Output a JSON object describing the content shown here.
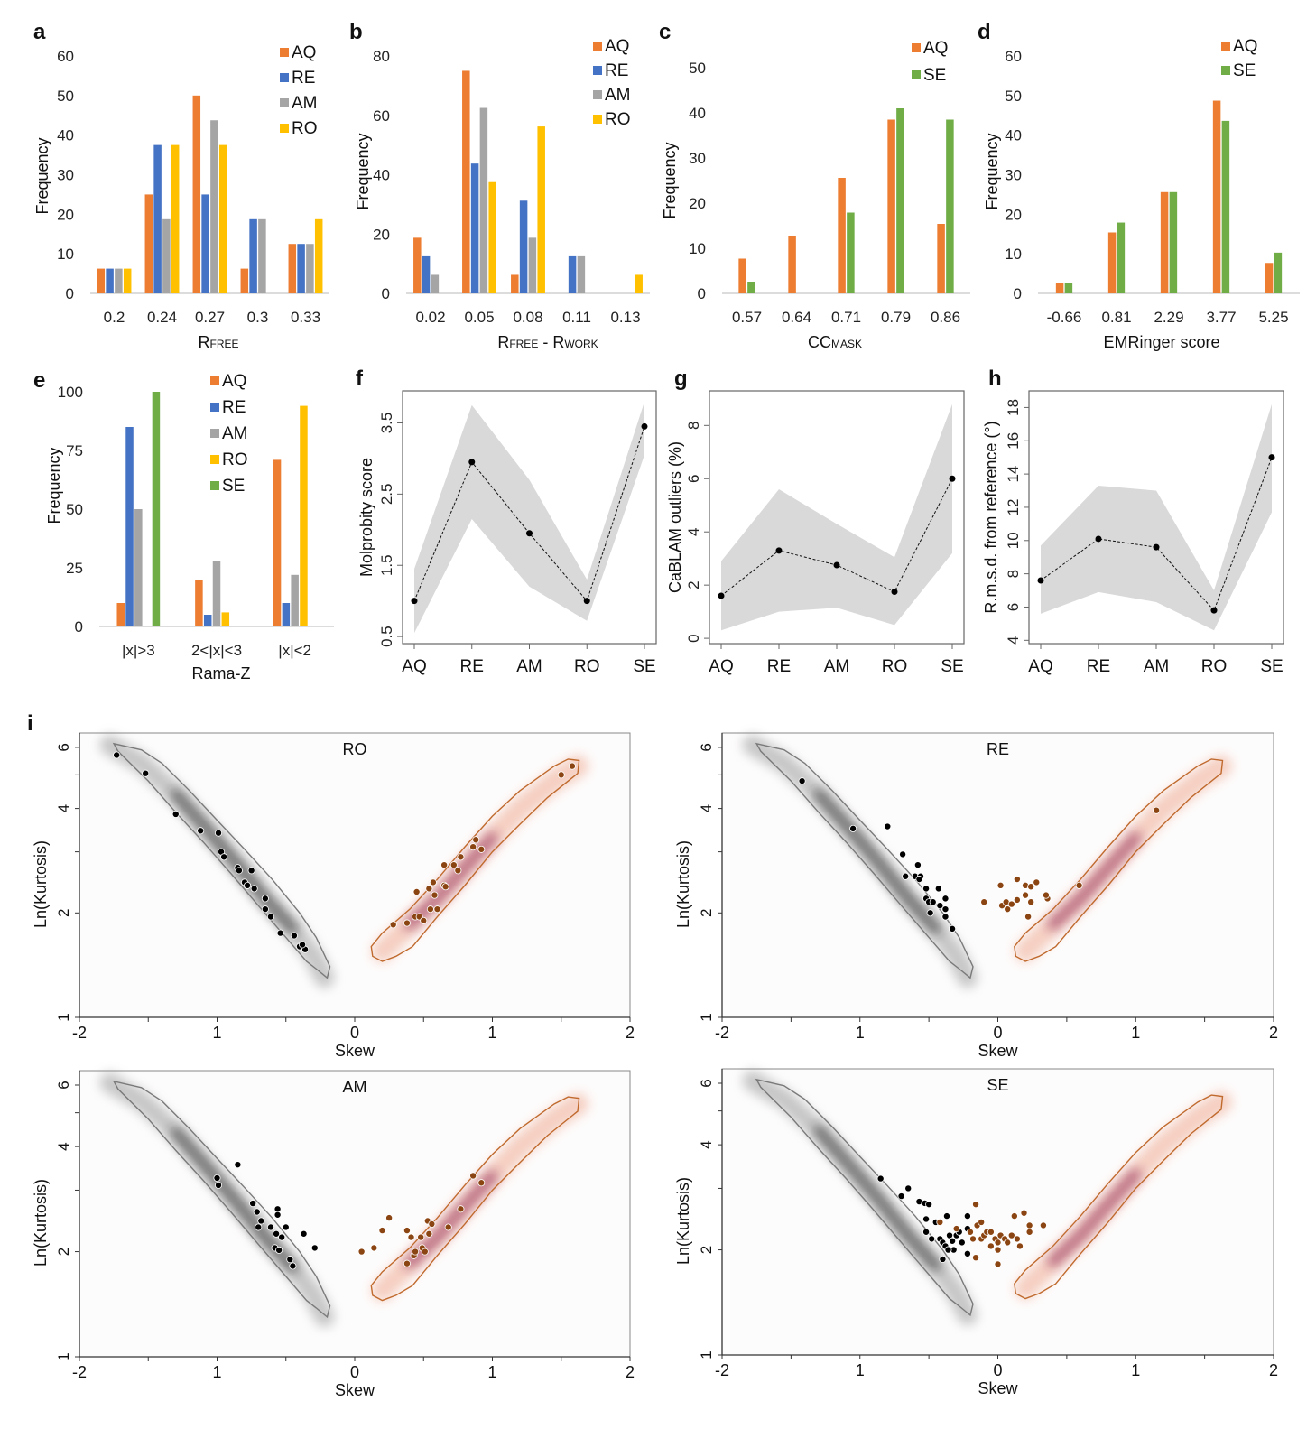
{
  "colors": {
    "AQ": "#ED7D31",
    "RE": "#4472C4",
    "AM": "#A5A5A5",
    "RO": "#FFC000",
    "SE": "#70AD47",
    "band": "#D9D9D9",
    "kde_neg": "#333333",
    "kde_pos": "#8B2252",
    "contour_neg": "#7a7a7a",
    "contour_pos": "#C06A2E",
    "points_pos": "#8B4513"
  },
  "panel_labels": {
    "a": "a",
    "b": "b",
    "c": "c",
    "d": "d",
    "e": "e",
    "f": "f",
    "g": "g",
    "h": "h",
    "i": "i"
  },
  "chart_data": [
    {
      "id": "a",
      "type": "bar",
      "ylabel": "Frequency",
      "xlabel": "R",
      "xlabel_sub": "FREE",
      "xlabel_rest": "",
      "ylim": [
        0,
        60
      ],
      "yticks": [
        0,
        10,
        20,
        30,
        40,
        50,
        60
      ],
      "categories": [
        "0.2",
        "0.24",
        "0.27",
        "0.3",
        "0.33"
      ],
      "legend": "top-right",
      "series": [
        {
          "name": "AQ",
          "values": [
            6.25,
            25,
            50,
            6.25,
            12.5
          ]
        },
        {
          "name": "RE",
          "values": [
            6.25,
            37.5,
            25,
            18.75,
            12.5
          ]
        },
        {
          "name": "AM",
          "values": [
            6.25,
            18.75,
            43.75,
            18.75,
            12.5
          ]
        },
        {
          "name": "RO",
          "values": [
            6.25,
            37.5,
            37.5,
            0,
            18.75
          ]
        }
      ]
    },
    {
      "id": "b",
      "type": "bar",
      "ylabel": "Frequency",
      "xlabel": "R",
      "xlabel_sub": "FREE",
      "xlabel_rest": " - R",
      "xlabel_sub2": "WORK",
      "ylim": [
        0,
        80
      ],
      "yticks": [
        0,
        20,
        40,
        60,
        80
      ],
      "categories": [
        "0.02",
        "0.05",
        "0.08",
        "0.11",
        "0.13"
      ],
      "legend": "top-right",
      "series": [
        {
          "name": "AQ",
          "values": [
            18.75,
            75,
            6.25,
            0,
            0
          ]
        },
        {
          "name": "RE",
          "values": [
            12.5,
            43.75,
            31.25,
            12.5,
            0
          ]
        },
        {
          "name": "AM",
          "values": [
            6.25,
            62.5,
            18.75,
            12.5,
            0
          ]
        },
        {
          "name": "RO",
          "values": [
            0,
            37.5,
            56.25,
            0,
            6.25
          ]
        }
      ]
    },
    {
      "id": "c",
      "type": "bar",
      "ylabel": "Frequency",
      "xlabel": "CC",
      "xlabel_sub": "MASK",
      "xlabel_rest": "",
      "ylim": [
        0,
        50
      ],
      "yticks": [
        0,
        10,
        20,
        30,
        40,
        50
      ],
      "categories": [
        "0.57",
        "0.64",
        "0.71",
        "0.79",
        "0.86"
      ],
      "legend": "top-right",
      "series": [
        {
          "name": "AQ",
          "values": [
            7.7,
            12.8,
            25.6,
            38.5,
            15.4
          ]
        },
        {
          "name": "SE",
          "values": [
            2.6,
            0,
            17.9,
            41.0,
            38.5
          ]
        }
      ]
    },
    {
      "id": "d",
      "type": "bar",
      "ylabel": "Frequency",
      "xlabel": "EMRinger score",
      "xlabel_sub": "",
      "xlabel_rest": "",
      "ylim": [
        0,
        60
      ],
      "yticks": [
        0,
        10,
        20,
        30,
        40,
        50,
        60
      ],
      "categories": [
        "-0.66",
        "0.81",
        "2.29",
        "3.77",
        "5.25"
      ],
      "legend": "top-right",
      "series": [
        {
          "name": "AQ",
          "values": [
            2.6,
            15.4,
            25.6,
            48.7,
            7.7
          ]
        },
        {
          "name": "SE",
          "values": [
            2.6,
            17.9,
            25.6,
            43.6,
            10.3
          ]
        }
      ]
    },
    {
      "id": "e",
      "type": "bar",
      "ylabel": "Frequency",
      "xlabel": "Rama-Z",
      "xlabel_sub": "",
      "xlabel_rest": "",
      "ylim": [
        0,
        100
      ],
      "yticks": [
        0,
        25,
        50,
        75,
        100
      ],
      "categories": [
        "|x|>3",
        "2<|x|<3",
        "|x|<2"
      ],
      "legend": "top-center",
      "series": [
        {
          "name": "AQ",
          "values": [
            10,
            20,
            71
          ]
        },
        {
          "name": "RE",
          "values": [
            85,
            5,
            10
          ]
        },
        {
          "name": "AM",
          "values": [
            50,
            28,
            22
          ]
        },
        {
          "name": "RO",
          "values": [
            0,
            6,
            94
          ]
        },
        {
          "name": "SE",
          "values": [
            100,
            0,
            0
          ]
        }
      ]
    },
    {
      "id": "f",
      "type": "line",
      "ylabel": "Molprobity score",
      "categories": [
        "AQ",
        "RE",
        "AM",
        "RO",
        "SE"
      ],
      "values": [
        1.0,
        2.95,
        1.95,
        1.0,
        3.45
      ],
      "lower": [
        0.55,
        2.15,
        1.2,
        0.72,
        3.05
      ],
      "upper": [
        1.45,
        3.75,
        2.7,
        1.3,
        3.8
      ],
      "ylim": [
        0.4,
        3.95
      ],
      "yticks": [
        "0.5",
        "1.5",
        "2.5",
        "3.5"
      ]
    },
    {
      "id": "g",
      "type": "line",
      "ylabel": "CaBLAM outliers (%)",
      "categories": [
        "AQ",
        "RE",
        "AM",
        "RO",
        "SE"
      ],
      "values": [
        1.6,
        3.3,
        2.75,
        1.75,
        6.0
      ],
      "lower": [
        0.3,
        1.0,
        1.15,
        0.5,
        3.2
      ],
      "upper": [
        2.9,
        5.6,
        4.3,
        3.05,
        8.8
      ],
      "ylim": [
        -0.2,
        9.3
      ],
      "yticks": [
        "0",
        "2",
        "4",
        "6",
        "8"
      ]
    },
    {
      "id": "h",
      "type": "line",
      "ylabel": "R.m.s.d. from reference (°)",
      "categories": [
        "AQ",
        "RE",
        "AM",
        "RO",
        "SE"
      ],
      "values": [
        7.6,
        10.1,
        9.6,
        5.8,
        15.0
      ],
      "lower": [
        5.6,
        6.9,
        6.3,
        4.6,
        11.7
      ],
      "upper": [
        9.7,
        13.3,
        13.0,
        7.0,
        18.2
      ],
      "ylim": [
        3.8,
        19.0
      ],
      "yticks": [
        "4",
        "6",
        "8",
        "10",
        "12",
        "14",
        "16",
        "18"
      ]
    },
    {
      "id": "i-RO",
      "type": "scatter",
      "title": "RO",
      "xlabel": "Skew",
      "ylabel": "Ln(Kurtosis)",
      "xlim": [
        -2,
        2
      ],
      "ylim": [
        1,
        6.6
      ],
      "yscale": "log",
      "xticklabels": [
        "-2",
        "1",
        "0",
        "1",
        "2"
      ],
      "yticks": [
        "1",
        "2",
        "4",
        "6"
      ],
      "neg_points": [
        [
          -1.73,
          5.7
        ],
        [
          -1.52,
          5.05
        ],
        [
          -1.3,
          3.85
        ],
        [
          -1.12,
          3.45
        ],
        [
          -0.99,
          3.4
        ],
        [
          -0.97,
          3.0
        ],
        [
          -0.95,
          2.9
        ],
        [
          -0.85,
          2.7
        ],
        [
          -0.84,
          2.65
        ],
        [
          -0.75,
          2.65
        ],
        [
          -0.8,
          2.45
        ],
        [
          -0.78,
          2.4
        ],
        [
          -0.73,
          2.35
        ],
        [
          -0.65,
          2.2
        ],
        [
          -0.65,
          2.05
        ],
        [
          -0.61,
          1.95
        ],
        [
          -0.54,
          1.75
        ],
        [
          -0.44,
          1.72
        ],
        [
          -0.4,
          1.6
        ],
        [
          -0.36,
          1.57
        ],
        [
          -0.38,
          1.62
        ]
      ],
      "pos_points": [
        [
          0.28,
          1.85
        ],
        [
          0.38,
          1.87
        ],
        [
          0.44,
          1.95
        ],
        [
          0.47,
          1.95
        ],
        [
          0.5,
          1.9
        ],
        [
          0.45,
          2.3
        ],
        [
          0.54,
          2.35
        ],
        [
          0.57,
          2.45
        ],
        [
          0.55,
          2.05
        ],
        [
          0.6,
          2.05
        ],
        [
          0.58,
          2.25
        ],
        [
          0.65,
          2.4
        ],
        [
          0.66,
          2.38
        ],
        [
          0.65,
          2.75
        ],
        [
          0.72,
          2.75
        ],
        [
          0.75,
          2.65
        ],
        [
          0.77,
          2.9
        ],
        [
          0.86,
          3.1
        ],
        [
          0.88,
          3.25
        ],
        [
          0.92,
          3.05
        ],
        [
          1.5,
          5.0
        ],
        [
          1.58,
          5.3
        ]
      ]
    },
    {
      "id": "i-RE",
      "type": "scatter",
      "title": "RE",
      "xlabel": "Skew",
      "ylabel": "Ln(Kurtosis)",
      "xlim": [
        -2,
        2
      ],
      "ylim": [
        1,
        6.6
      ],
      "yscale": "log",
      "xticklabels": [
        "-2",
        "1",
        "0",
        "1",
        "2"
      ],
      "yticks": [
        "1",
        "2",
        "4",
        "6"
      ],
      "neg_points": [
        [
          -1.42,
          4.8
        ],
        [
          -1.05,
          3.5
        ],
        [
          -0.8,
          3.55
        ],
        [
          -0.69,
          2.95
        ],
        [
          -0.58,
          2.75
        ],
        [
          -0.67,
          2.55
        ],
        [
          -0.6,
          2.55
        ],
        [
          -0.56,
          2.55
        ],
        [
          -0.57,
          2.5
        ],
        [
          -0.52,
          2.35
        ],
        [
          -0.43,
          2.35
        ],
        [
          -0.52,
          2.2
        ],
        [
          -0.5,
          2.15
        ],
        [
          -0.47,
          2.15
        ],
        [
          -0.42,
          2.1
        ],
        [
          -0.38,
          2.2
        ],
        [
          -0.38,
          2.05
        ],
        [
          -0.38,
          1.95
        ],
        [
          -0.49,
          2.0
        ],
        [
          -0.33,
          1.8
        ]
      ],
      "pos_points": [
        [
          -0.1,
          2.15
        ],
        [
          0.02,
          2.4
        ],
        [
          0.03,
          2.1
        ],
        [
          0.06,
          2.15
        ],
        [
          0.07,
          2.05
        ],
        [
          0.1,
          2.12
        ],
        [
          0.14,
          2.5
        ],
        [
          0.14,
          2.18
        ],
        [
          0.2,
          2.4
        ],
        [
          0.2,
          2.25
        ],
        [
          0.24,
          2.38
        ],
        [
          0.24,
          2.15
        ],
        [
          0.28,
          2.45
        ],
        [
          0.22,
          1.95
        ],
        [
          0.36,
          2.2
        ],
        [
          0.35,
          2.25
        ],
        [
          0.59,
          2.4
        ],
        [
          1.15,
          3.95
        ]
      ]
    },
    {
      "id": "i-AM",
      "type": "scatter",
      "title": "AM",
      "xlabel": "Skew",
      "ylabel": "Ln(Kurtosis)",
      "xlim": [
        -2,
        2
      ],
      "ylim": [
        1,
        6.6
      ],
      "yscale": "log",
      "xticklabels": [
        "-2",
        "1",
        "0",
        "1",
        "2"
      ],
      "yticks": [
        "1",
        "2",
        "4",
        "6"
      ],
      "neg_points": [
        [
          -1.0,
          3.25
        ],
        [
          -0.99,
          3.1
        ],
        [
          -0.85,
          3.55
        ],
        [
          -0.74,
          2.75
        ],
        [
          -0.71,
          2.6
        ],
        [
          -0.68,
          2.45
        ],
        [
          -0.7,
          2.35
        ],
        [
          -0.61,
          2.35
        ],
        [
          -0.57,
          2.25
        ],
        [
          -0.56,
          2.65
        ],
        [
          -0.56,
          2.55
        ],
        [
          -0.5,
          2.35
        ],
        [
          -0.53,
          2.2
        ],
        [
          -0.58,
          2.05
        ],
        [
          -0.55,
          2.02
        ],
        [
          -0.37,
          2.25
        ],
        [
          -0.47,
          1.9
        ],
        [
          -0.45,
          1.82
        ],
        [
          -0.29,
          2.05
        ]
      ],
      "pos_points": [
        [
          0.05,
          2.0
        ],
        [
          0.14,
          2.05
        ],
        [
          0.2,
          2.3
        ],
        [
          0.25,
          2.5
        ],
        [
          0.38,
          2.3
        ],
        [
          0.41,
          2.2
        ],
        [
          0.43,
          1.95
        ],
        [
          0.44,
          2.0
        ],
        [
          0.38,
          1.85
        ],
        [
          0.48,
          2.2
        ],
        [
          0.49,
          2.05
        ],
        [
          0.51,
          2.0
        ],
        [
          0.53,
          2.45
        ],
        [
          0.54,
          2.25
        ],
        [
          0.56,
          2.4
        ],
        [
          0.68,
          2.35
        ],
        [
          0.77,
          2.65
        ],
        [
          0.86,
          3.3
        ],
        [
          0.92,
          3.15
        ]
      ]
    },
    {
      "id": "i-SE",
      "type": "scatter",
      "title": "SE",
      "xlabel": "Skew",
      "ylabel": "Ln(Kurtosis)",
      "xlim": [
        -2,
        2
      ],
      "ylim": [
        1,
        6.6
      ],
      "yscale": "log",
      "xticklabels": [
        "-2",
        "1",
        "0",
        "1",
        "2"
      ],
      "yticks": [
        "1",
        "2",
        "4",
        "6"
      ],
      "neg_points": [
        [
          -0.85,
          3.2
        ],
        [
          -0.65,
          3.0
        ],
        [
          -0.7,
          2.85
        ],
        [
          -0.57,
          2.75
        ],
        [
          -0.53,
          2.72
        ],
        [
          -0.5,
          2.7
        ],
        [
          -0.52,
          2.45
        ],
        [
          -0.45,
          2.4
        ],
        [
          -0.37,
          2.5
        ],
        [
          -0.52,
          2.25
        ],
        [
          -0.48,
          2.15
        ],
        [
          -0.42,
          2.15
        ],
        [
          -0.4,
          2.1
        ],
        [
          -0.38,
          2.05
        ],
        [
          -0.35,
          2.2
        ],
        [
          -0.33,
          2.12
        ],
        [
          -0.3,
          2.2
        ],
        [
          -0.28,
          2.25
        ],
        [
          -0.32,
          2.0
        ],
        [
          -0.36,
          2.0
        ],
        [
          -0.26,
          2.1
        ],
        [
          -0.22,
          2.5
        ],
        [
          -0.22,
          2.3
        ],
        [
          -0.22,
          1.95
        ],
        [
          -0.4,
          1.88
        ]
      ],
      "pos_points": [
        [
          -0.42,
          2.4
        ],
        [
          -0.3,
          2.3
        ],
        [
          -0.2,
          2.25
        ],
        [
          -0.16,
          2.7
        ],
        [
          -0.15,
          2.35
        ],
        [
          -0.12,
          2.4
        ],
        [
          -0.12,
          2.15
        ],
        [
          -0.18,
          2.15
        ],
        [
          -0.1,
          2.2
        ],
        [
          -0.08,
          2.25
        ],
        [
          -0.05,
          2.25
        ],
        [
          -0.02,
          2.15
        ],
        [
          0.0,
          2.1
        ],
        [
          0.02,
          2.2
        ],
        [
          0.05,
          2.15
        ],
        [
          0.07,
          2.1
        ],
        [
          0.1,
          2.2
        ],
        [
          0.12,
          2.5
        ],
        [
          0.14,
          2.15
        ],
        [
          0.16,
          2.05
        ],
        [
          0.19,
          2.55
        ],
        [
          0.23,
          2.35
        ],
        [
          0.23,
          2.25
        ],
        [
          0.33,
          2.35
        ],
        [
          -0.16,
          1.9
        ],
        [
          0.0,
          1.82
        ],
        [
          0.0,
          2.0
        ],
        [
          -0.05,
          2.05
        ]
      ]
    }
  ]
}
